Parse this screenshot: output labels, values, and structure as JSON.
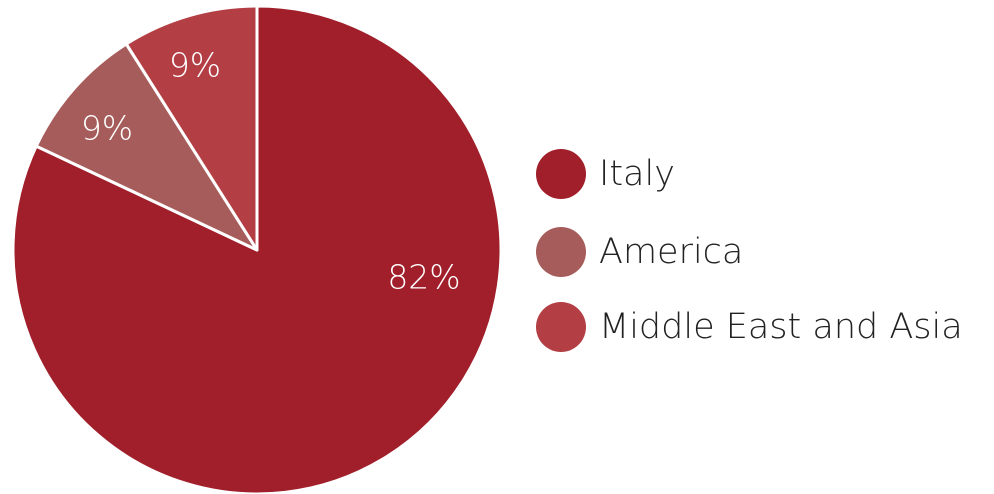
{
  "chart_data": {
    "type": "pie",
    "title": "",
    "slices": [
      {
        "label": "Italy",
        "value": 82,
        "display": "82%",
        "color": "#a01f2a"
      },
      {
        "label": "America",
        "value": 9,
        "display": "9%",
        "color": "#a65c5a"
      },
      {
        "label": "Middle East and Asia",
        "value": 9,
        "display": "9%",
        "color": "#b33f45"
      }
    ],
    "start_angle": "12 o'clock",
    "direction": "clockwise",
    "legend_position": "right",
    "separator_color": "#ffffff"
  }
}
